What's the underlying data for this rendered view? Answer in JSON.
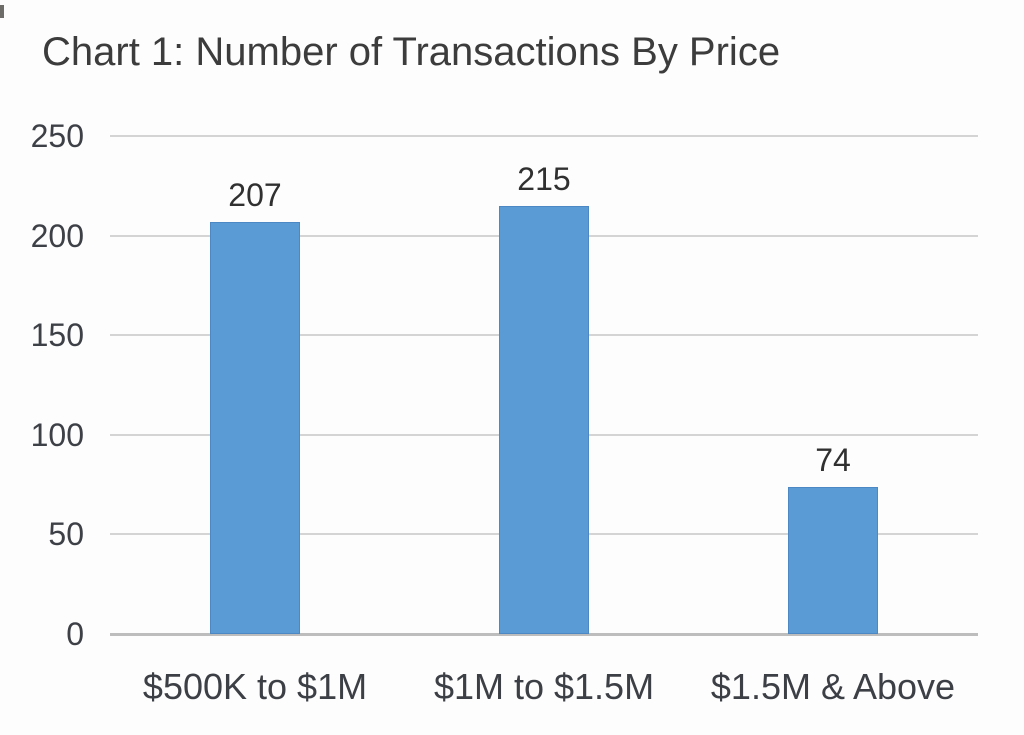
{
  "chart_data": {
    "type": "bar",
    "title": "Chart 1: Number of Transactions By Price",
    "categories": [
      "$500K to $1M",
      "$1M to $1.5M",
      "$1.5M & Above"
    ],
    "values": [
      207,
      215,
      74
    ],
    "data_labels": [
      "207",
      "215",
      "74"
    ],
    "xlabel": "",
    "ylabel": "",
    "ylim": [
      0,
      250
    ],
    "yticks": [
      0,
      50,
      100,
      150,
      200,
      250
    ],
    "grid": true,
    "legend_position": "none",
    "bar_color": "#5B9BD5",
    "gridline_color": "#d4d4d4",
    "axis_line_color": "#bdbdbd",
    "text_color": "#3c3c3c"
  }
}
